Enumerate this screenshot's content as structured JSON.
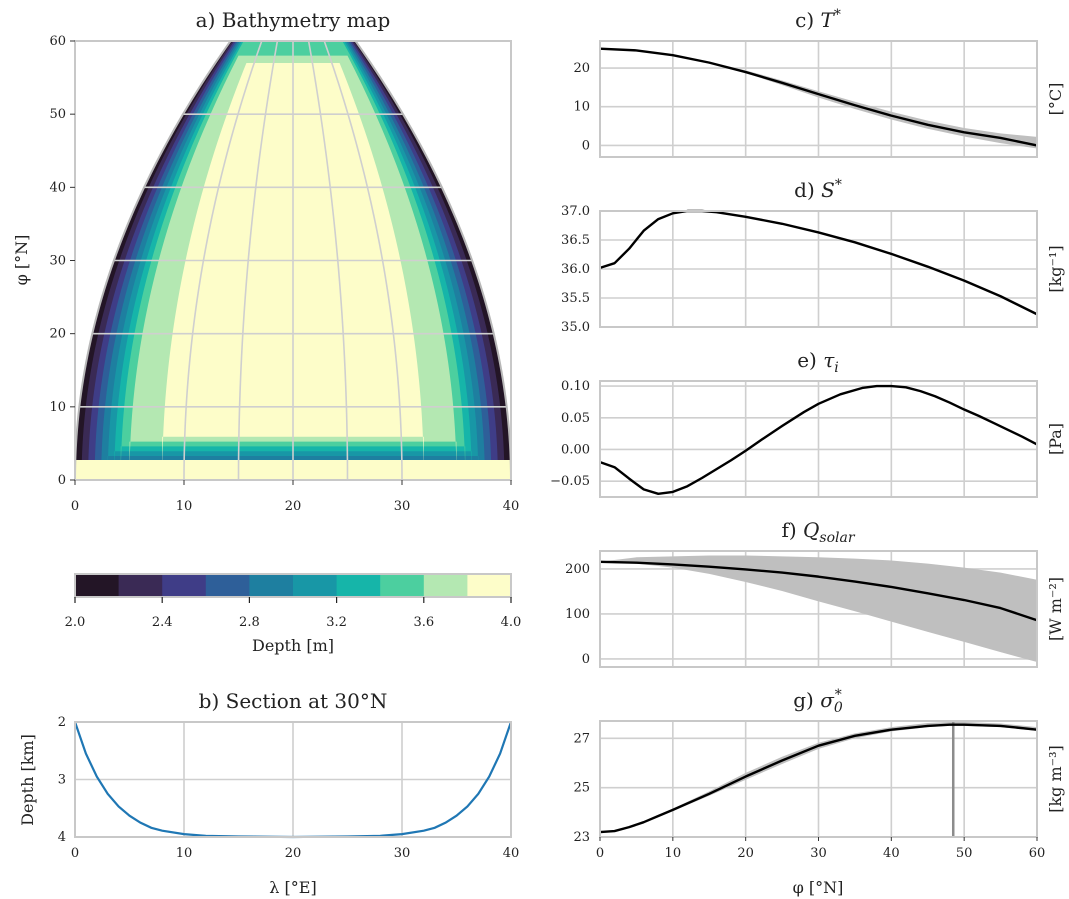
{
  "chart_data": [
    {
      "id": "a",
      "type": "heatmap",
      "title": "a) Bathymetry map",
      "ylabel": "φ [°N]",
      "xlim": [
        0,
        40
      ],
      "ylim": [
        0,
        60
      ],
      "x_ticks": [
        "0",
        "10",
        "20",
        "30",
        "40"
      ],
      "y_ticks": [
        "0",
        "10",
        "20",
        "30",
        "40",
        "50",
        "60"
      ],
      "grid": true,
      "colorbar": {
        "label": "Depth [m]",
        "ticks": [
          "2.0",
          "2.4",
          "2.8",
          "3.2",
          "3.6",
          "4.0"
        ],
        "levels": [
          2.0,
          2.2,
          2.4,
          2.6,
          2.8,
          3.0,
          3.2,
          3.4,
          3.6,
          3.8,
          4.0
        ],
        "colors": [
          "#231526",
          "#3a2a55",
          "#3f3d87",
          "#2e5f99",
          "#1e7fa0",
          "#1897a6",
          "#16b5a9",
          "#4ccf9f",
          "#b4e8b2",
          "#fdfdc9"
        ]
      },
      "notes": "basin depth 2 km at the coasts deepening to 4 km over ~8° of longitude; basin narrows toward the pole in map projection"
    },
    {
      "id": "b",
      "type": "line",
      "title": "b) Section at 30°N",
      "xlabel": "λ [°E]",
      "ylabel": "Depth [km]",
      "xlim": [
        0,
        40
      ],
      "ylim": [
        4,
        2
      ],
      "x_ticks": [
        "0",
        "10",
        "20",
        "30",
        "40"
      ],
      "y_ticks": [
        "2",
        "3",
        "4"
      ],
      "color": "#1f77b4",
      "series": [
        {
          "x": [
            0,
            1,
            2,
            3,
            4,
            5,
            6,
            7,
            8,
            10,
            12,
            15,
            20,
            25,
            28,
            30,
            32,
            33,
            34,
            35,
            36,
            37,
            38,
            39,
            40
          ],
          "y": [
            2.0,
            2.55,
            2.95,
            3.25,
            3.47,
            3.63,
            3.75,
            3.84,
            3.89,
            3.95,
            3.98,
            3.99,
            4.0,
            3.99,
            3.98,
            3.95,
            3.89,
            3.84,
            3.75,
            3.63,
            3.47,
            3.25,
            2.95,
            2.55,
            2.0
          ]
        }
      ]
    },
    {
      "id": "c",
      "type": "line",
      "title": "c) T*",
      "unit": "[°C]",
      "xlim": [
        0,
        60
      ],
      "ylim": [
        -3,
        27
      ],
      "y_ticks": [
        "0",
        "10",
        "20"
      ],
      "y_tick_values": [
        0,
        10,
        20
      ],
      "x": [
        0,
        5,
        10,
        15,
        20,
        25,
        30,
        35,
        40,
        45,
        50,
        55,
        60
      ],
      "values": [
        25.0,
        24.57,
        23.33,
        21.41,
        18.97,
        16.18,
        13.25,
        10.38,
        7.7,
        5.32,
        3.38,
        1.92,
        0.0
      ],
      "band_low": [
        25.0,
        24.6,
        23.4,
        21.5,
        18.7,
        15.6,
        12.4,
        9.4,
        6.7,
        4.3,
        2.3,
        0.6,
        -0.8
      ],
      "band_high": [
        25.0,
        24.6,
        23.4,
        21.6,
        19.4,
        16.8,
        14.0,
        11.3,
        8.7,
        6.4,
        4.5,
        3.1,
        2.2
      ]
    },
    {
      "id": "d",
      "type": "line",
      "title": "d) S*",
      "unit": "[kg⁻¹]",
      "xlim": [
        0,
        60
      ],
      "ylim": [
        35.0,
        37.0
      ],
      "y_ticks": [
        "35.0",
        "35.5",
        "36.0",
        "36.5",
        "37.0"
      ],
      "y_tick_values": [
        35.0,
        35.5,
        36.0,
        36.5,
        37.0
      ],
      "x": [
        0,
        2,
        4,
        6,
        8,
        10,
        12,
        14,
        16,
        20,
        25,
        30,
        35,
        40,
        45,
        50,
        55,
        60
      ],
      "values": [
        36.02,
        36.1,
        36.35,
        36.66,
        36.86,
        36.96,
        37.0,
        37.0,
        36.98,
        36.9,
        36.78,
        36.63,
        36.46,
        36.26,
        36.04,
        35.8,
        35.53,
        35.22
      ]
    },
    {
      "id": "e",
      "type": "line",
      "title": "e) τ_i",
      "unit": "[Pa]",
      "xlim": [
        0,
        60
      ],
      "ylim": [
        -0.075,
        0.108
      ],
      "y_ticks": [
        "−0.05",
        "0.00",
        "0.05",
        "0.10"
      ],
      "y_tick_values": [
        -0.05,
        0.0,
        0.05,
        0.1
      ],
      "x": [
        0,
        2,
        4,
        6,
        8,
        10,
        12,
        14,
        16,
        18,
        20,
        22,
        25,
        28,
        30,
        33,
        36,
        38,
        40,
        42,
        44,
        46,
        48,
        50,
        52,
        54,
        56,
        58,
        60
      ],
      "values": [
        -0.02,
        -0.028,
        -0.046,
        -0.063,
        -0.07,
        -0.067,
        -0.058,
        -0.045,
        -0.031,
        -0.017,
        -0.002,
        0.014,
        0.037,
        0.059,
        0.072,
        0.087,
        0.097,
        0.1,
        0.1,
        0.098,
        0.092,
        0.084,
        0.074,
        0.063,
        0.053,
        0.042,
        0.031,
        0.02,
        0.008
      ]
    },
    {
      "id": "f",
      "type": "line",
      "title": "f) Q_solar",
      "unit": "[W m⁻²]",
      "xlim": [
        0,
        60
      ],
      "ylim": [
        -18,
        240
      ],
      "y_ticks": [
        "0",
        "100",
        "200"
      ],
      "y_tick_values": [
        0,
        100,
        200
      ],
      "x": [
        0,
        5,
        10,
        15,
        20,
        25,
        30,
        35,
        40,
        45,
        50,
        55,
        60
      ],
      "values": [
        216,
        214,
        210,
        205,
        199,
        192,
        183,
        172,
        160,
        146,
        131,
        113,
        86
      ],
      "band_low": [
        216,
        212,
        203,
        189,
        171,
        151,
        128,
        106,
        83,
        60,
        38,
        15,
        -7
      ],
      "band_high": [
        216,
        226,
        228,
        230,
        230,
        228,
        226,
        223,
        219,
        212,
        203,
        192,
        176
      ]
    },
    {
      "id": "g",
      "type": "line",
      "title": "g) σ₀*",
      "unit": "[kg m⁻³]",
      "xlabel": "φ [°N]",
      "xlim": [
        0,
        60
      ],
      "ylim": [
        23,
        27.7
      ],
      "x_ticks": [
        "0",
        "10",
        "20",
        "30",
        "40",
        "50",
        "60"
      ],
      "y_ticks": [
        "23",
        "25",
        "27"
      ],
      "y_tick_values": [
        23,
        25,
        27
      ],
      "vline": 48.5,
      "x": [
        0,
        2,
        4,
        6,
        8,
        10,
        15,
        20,
        25,
        30,
        35,
        40,
        45,
        48,
        50,
        55,
        60
      ],
      "values": [
        23.2,
        23.24,
        23.4,
        23.6,
        23.85,
        24.1,
        24.75,
        25.45,
        26.1,
        26.7,
        27.1,
        27.35,
        27.5,
        27.55,
        27.55,
        27.5,
        27.35
      ],
      "band_low": [
        23.2,
        23.24,
        23.4,
        23.6,
        23.82,
        24.05,
        24.67,
        25.32,
        25.96,
        26.57,
        27.0,
        27.28,
        27.45,
        27.5,
        27.5,
        27.45,
        27.3
      ],
      "band_high": [
        23.2,
        23.25,
        23.42,
        23.63,
        23.88,
        24.15,
        24.85,
        25.6,
        26.25,
        26.82,
        27.2,
        27.45,
        27.62,
        27.66,
        27.66,
        27.6,
        27.45
      ]
    }
  ]
}
